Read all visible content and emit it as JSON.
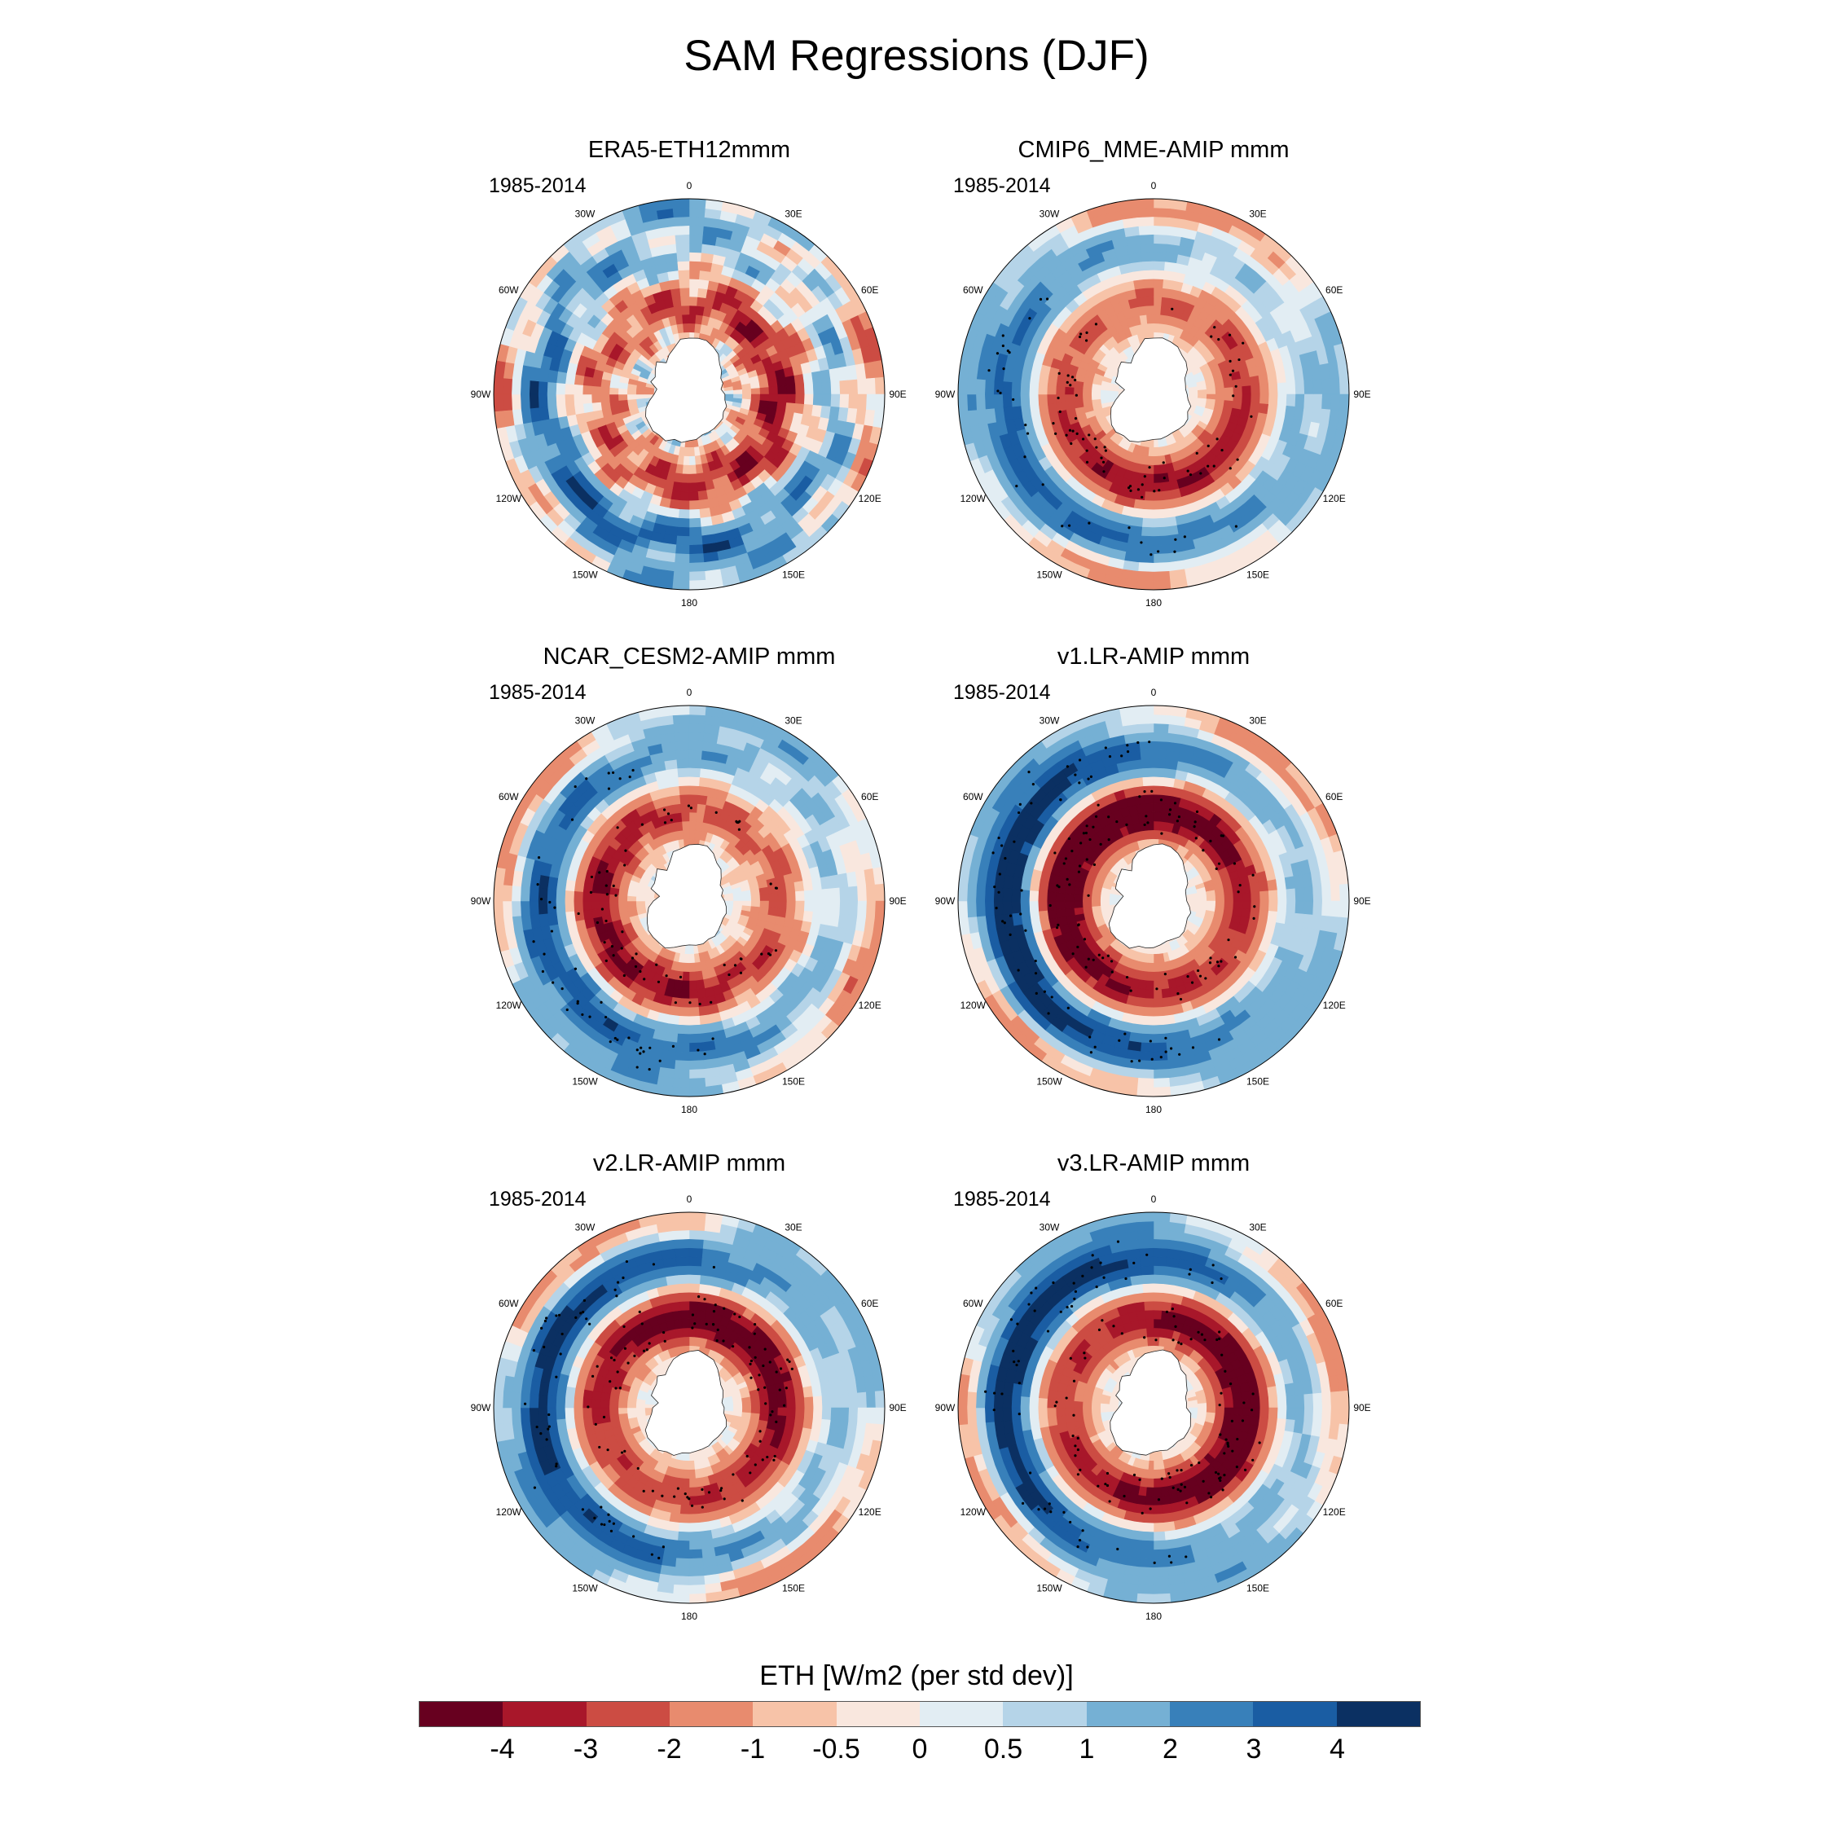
{
  "figure_title": "SAM Regressions (DJF)",
  "panels": [
    {
      "title": "ERA5-ETH12mmm",
      "period": "1985-2014"
    },
    {
      "title": "CMIP6_MME-AMIP  mmm",
      "period": "1985-2014"
    },
    {
      "title": "NCAR_CESM2-AMIP  mmm",
      "period": "1985-2014"
    },
    {
      "title": "v1.LR-AMIP  mmm",
      "period": "1985-2014"
    },
    {
      "title": "v2.LR-AMIP  mmm",
      "period": "1985-2014"
    },
    {
      "title": "v3.LR-AMIP  mmm",
      "period": "1985-2014"
    }
  ],
  "lon_labels": [
    "0",
    "30E",
    "60E",
    "90E",
    "120E",
    "150E",
    "180",
    "150W",
    "120W",
    "90W",
    "60W",
    "30W"
  ],
  "colorbar": {
    "title": "ETH [W/m2 (per std dev)]",
    "ticks": [
      "-4",
      "-3",
      "-2",
      "-1",
      "-0.5",
      "0",
      "0.5",
      "1",
      "2",
      "3",
      "4"
    ],
    "colors": [
      "#67001f",
      "#a8172a",
      "#cc4c43",
      "#e88b6e",
      "#f7c3a8",
      "#f9e7de",
      "#e2edf3",
      "#b5d4e8",
      "#75b0d4",
      "#3880ba",
      "#1a5da3",
      "#0b3062"
    ]
  },
  "chart_data": {
    "type": "heatmap",
    "title": "SAM Regressions (DJF)",
    "projection": "south-polar-stereographic",
    "variable": "ETH [W/m2 (per std dev)]",
    "period": "1985-2014",
    "panels": [
      "ERA5-ETH12mmm",
      "CMIP6_MME-AMIP  mmm",
      "NCAR_CESM2-AMIP  mmm",
      "v1.LR-AMIP  mmm",
      "v2.LR-AMIP  mmm",
      "v3.LR-AMIP  mmm"
    ],
    "levels": [
      -4,
      -3,
      -2,
      -1,
      -0.5,
      0,
      0.5,
      1,
      2,
      3,
      4
    ],
    "stippling": "significance dots"
  }
}
